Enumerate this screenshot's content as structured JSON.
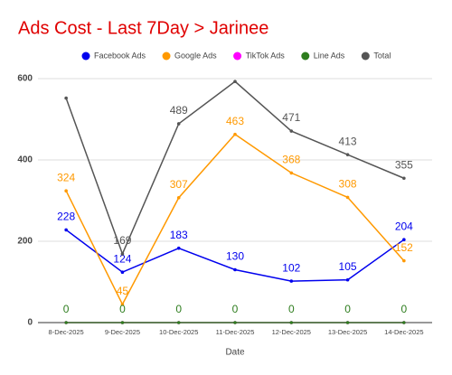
{
  "chart_data": {
    "type": "line",
    "title": "Ads Cost - Last 7Day > Jarinee",
    "x_label": "Date",
    "categories": [
      "8-Dec-2025",
      "9-Dec-2025",
      "10-Dec-2025",
      "11-Dec-2025",
      "12-Dec-2025",
      "13-Dec-2025",
      "14-Dec-2025"
    ],
    "series": [
      {
        "name": "Facebook Ads",
        "color": "#0000ee",
        "values": [
          228,
          124,
          183,
          130,
          102,
          105,
          204
        ],
        "value_labels": [
          "228",
          "124",
          "183",
          "130",
          "102",
          "105",
          "204"
        ]
      },
      {
        "name": "Google Ads",
        "color": "#ff9900",
        "values": [
          324,
          45,
          307,
          463,
          368,
          308,
          152
        ],
        "value_labels": [
          "324",
          "45",
          "307",
          "463",
          "368",
          "308",
          "152"
        ]
      },
      {
        "name": "TikTok Ads",
        "color": "#ff00ff",
        "values": [
          0,
          0,
          0,
          0,
          0,
          0,
          0
        ],
        "value_labels": [
          null,
          null,
          null,
          null,
          null,
          null,
          null
        ]
      },
      {
        "name": "Line Ads",
        "color": "#2e7d1e",
        "values": [
          0,
          0,
          0,
          0,
          0,
          0,
          0
        ],
        "value_labels": [
          "0",
          "0",
          "0",
          "0",
          "0",
          "0",
          "0"
        ]
      },
      {
        "name": "Total",
        "color": "#555555",
        "values": [
          552,
          169,
          489,
          593,
          471,
          413,
          355
        ],
        "value_labels": [
          null,
          "169",
          "489",
          null,
          "471",
          "413",
          "355"
        ]
      }
    ],
    "ylim": [
      0,
      600
    ],
    "yticks": [
      0,
      200,
      400,
      600
    ],
    "grid": true,
    "legend": "top"
  }
}
